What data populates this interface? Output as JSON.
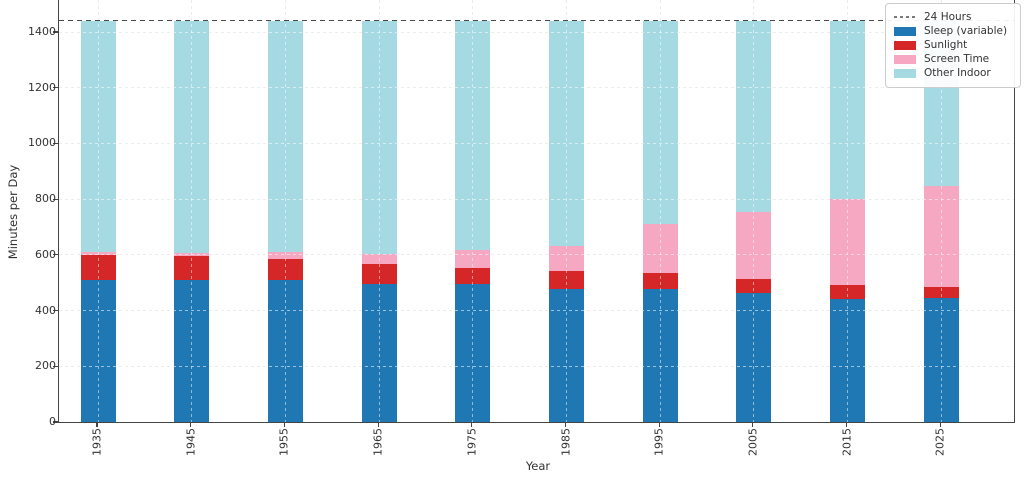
{
  "chart_data": {
    "type": "bar",
    "stacked": true,
    "xlabel": "Year",
    "ylabel": "Minutes per Day",
    "categories": [
      "1935",
      "1945",
      "1955",
      "1965",
      "1975",
      "1985",
      "1995",
      "2005",
      "2015",
      "2025"
    ],
    "series": [
      {
        "name": "Sleep (variable)",
        "color": "#1f77b4",
        "values": [
          509,
          511,
          509,
          497,
          495,
          479,
          479,
          464,
          442,
          447
        ]
      },
      {
        "name": "Sunlight",
        "color": "#d62728",
        "values": [
          92,
          84,
          78,
          69,
          59,
          62,
          57,
          48,
          51,
          37
        ]
      },
      {
        "name": "Screen Time",
        "color": "#f6a7c1",
        "values": [
          9,
          12,
          22,
          38,
          62,
          90,
          176,
          242,
          306,
          362
        ]
      },
      {
        "name": "Other Indoor",
        "color": "#a5dae3",
        "values": [
          830,
          833,
          831,
          836,
          824,
          809,
          728,
          686,
          641,
          594
        ]
      }
    ],
    "reference_line": {
      "label": "24 Hours",
      "value": 1440,
      "style": "dashed",
      "color": "#4a4a4a"
    },
    "ylim": [
      0,
      1515
    ],
    "yticks": [
      0,
      200,
      400,
      600,
      800,
      1000,
      1200,
      1400
    ],
    "ytick_labels": [
      "0",
      "200",
      "400",
      "600",
      "800",
      "1000",
      "1200",
      "1400"
    ],
    "grid": true,
    "legend_position": "upper right"
  },
  "legend": {
    "items": [
      {
        "label": "24 Hours",
        "type": "line",
        "color": "#7a7a7a"
      },
      {
        "label": "Sleep (variable)",
        "type": "patch",
        "color": "#1f77b4"
      },
      {
        "label": "Sunlight",
        "type": "patch",
        "color": "#d62728"
      },
      {
        "label": "Screen Time",
        "type": "patch",
        "color": "#f6a7c1"
      },
      {
        "label": "Other Indoor",
        "type": "patch",
        "color": "#a5dae3"
      }
    ]
  },
  "axes": {
    "xlabel": "Year",
    "ylabel": "Minutes per Day"
  }
}
